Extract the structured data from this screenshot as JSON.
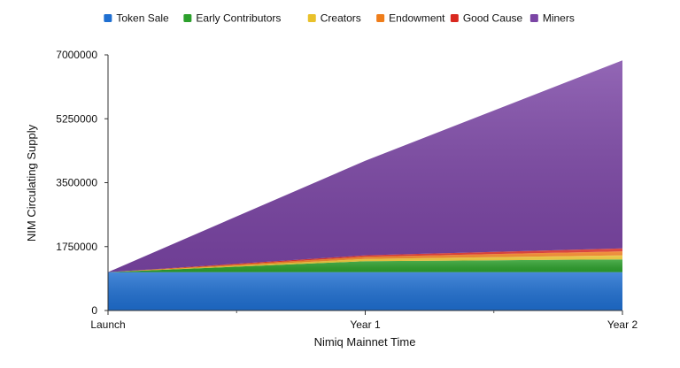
{
  "chart_data": {
    "type": "area",
    "stacked": true,
    "categories": [
      "Launch",
      "Year 1",
      "Year 2"
    ],
    "series": [
      {
        "name": "Token Sale",
        "color": "#1f6fd1",
        "values": [
          1050000,
          1050000,
          1050000
        ]
      },
      {
        "name": "Early Contributors",
        "color": "#2ca02c",
        "values": [
          0,
          300000,
          350000
        ]
      },
      {
        "name": "Creators",
        "color": "#e9c12b",
        "values": [
          0,
          60000,
          110000
        ]
      },
      {
        "name": "Endowment",
        "color": "#ef7d1a",
        "values": [
          0,
          60000,
          110000
        ]
      },
      {
        "name": "Good Cause",
        "color": "#d9281f",
        "values": [
          0,
          40000,
          80000
        ]
      },
      {
        "name": "Miners",
        "color": "#7b45a5",
        "values": [
          0,
          2590000,
          5150000
        ]
      }
    ],
    "xlabel": "Nimiq Mainnet Time",
    "ylabel": "NIM Circulating Supply",
    "ylim": [
      0,
      7000000
    ],
    "yticks": [
      0,
      1750000,
      3500000,
      5250000,
      7000000
    ],
    "legend_position": "top",
    "grid": false
  }
}
